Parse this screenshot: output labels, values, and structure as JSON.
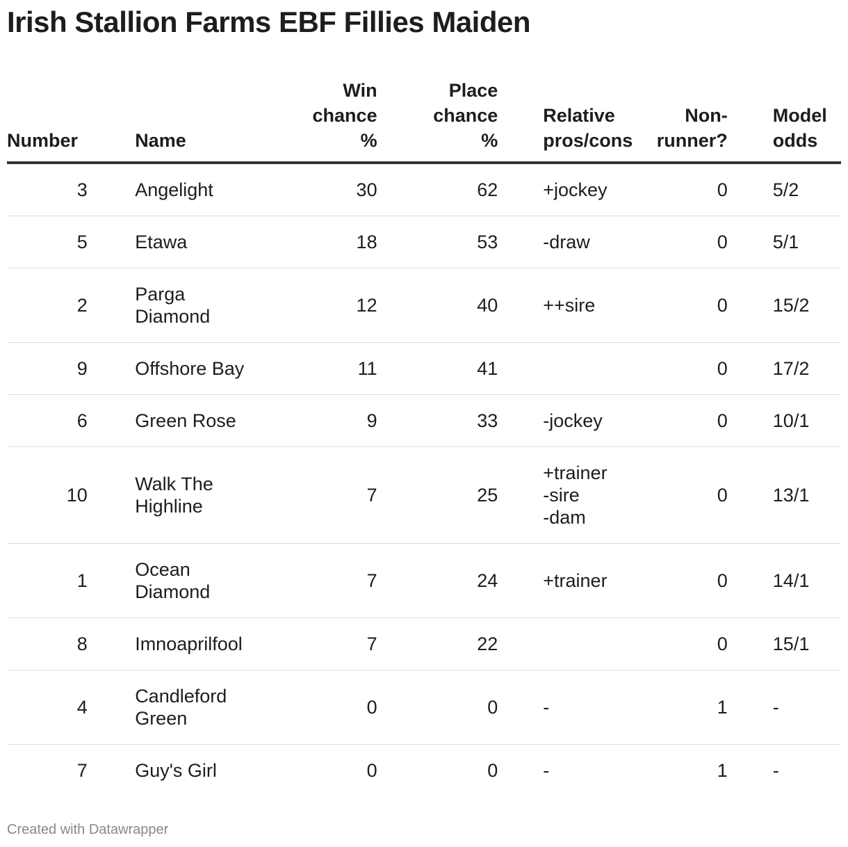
{
  "title": "Irish Stallion Farms EBF Fillies Maiden",
  "columns": {
    "number": "Number",
    "name": "Name",
    "win": "Win\nchance\n%",
    "place": "Place\nchance\n%",
    "relative": "Relative\npros/cons",
    "nonrunner": "Non-\nrunner?",
    "odds": "Model\nodds"
  },
  "rows": [
    {
      "number": "3",
      "name": "Angelight",
      "win": "30",
      "place": "62",
      "relative": "+jockey",
      "nonrunner": "0",
      "odds": "5/2"
    },
    {
      "number": "5",
      "name": "Etawa",
      "win": "18",
      "place": "53",
      "relative": "-draw",
      "nonrunner": "0",
      "odds": "5/1"
    },
    {
      "number": "2",
      "name": "Parga\nDiamond",
      "win": "12",
      "place": "40",
      "relative": "++sire",
      "nonrunner": "0",
      "odds": "15/2"
    },
    {
      "number": "9",
      "name": "Offshore Bay",
      "win": "11",
      "place": "41",
      "relative": "",
      "nonrunner": "0",
      "odds": "17/2"
    },
    {
      "number": "6",
      "name": "Green Rose",
      "win": "9",
      "place": "33",
      "relative": "-jockey",
      "nonrunner": "0",
      "odds": "10/1"
    },
    {
      "number": "10",
      "name": "Walk The\nHighline",
      "win": "7",
      "place": "25",
      "relative": "+trainer\n-sire\n-dam",
      "nonrunner": "0",
      "odds": "13/1"
    },
    {
      "number": "1",
      "name": "Ocean\nDiamond",
      "win": "7",
      "place": "24",
      "relative": "+trainer",
      "nonrunner": "0",
      "odds": "14/1"
    },
    {
      "number": "8",
      "name": "Imnoaprilfool",
      "win": "7",
      "place": "22",
      "relative": "",
      "nonrunner": "0",
      "odds": "15/1"
    },
    {
      "number": "4",
      "name": "Candleford\nGreen",
      "win": "0",
      "place": "0",
      "relative": "-",
      "nonrunner": "1",
      "odds": "-"
    },
    {
      "number": "7",
      "name": "Guy's Girl",
      "win": "0",
      "place": "0",
      "relative": "-",
      "nonrunner": "1",
      "odds": "-"
    }
  ],
  "footer": "Created with Datawrapper"
}
